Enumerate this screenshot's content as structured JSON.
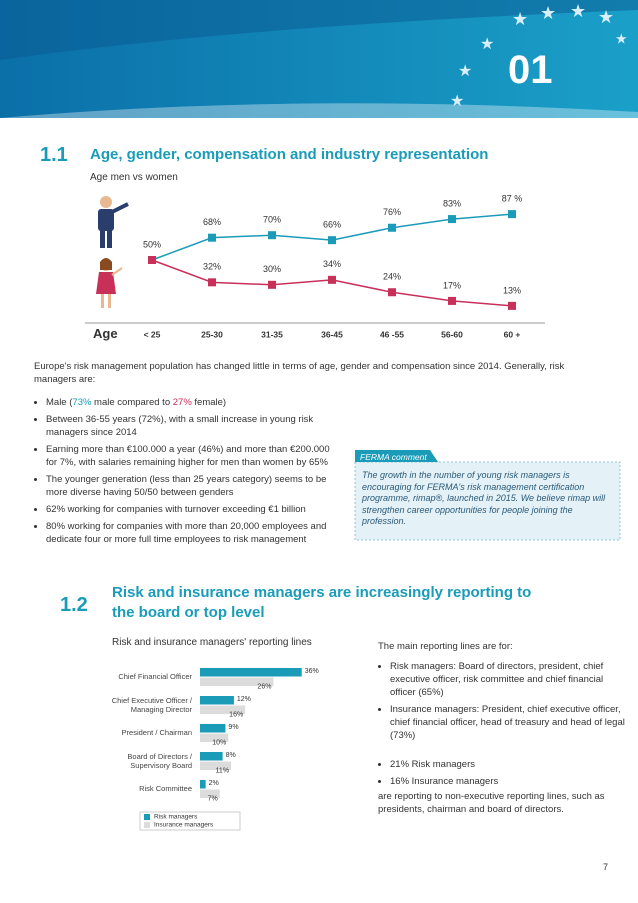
{
  "header": {
    "number": "01"
  },
  "section1": {
    "number": "1.1",
    "title": "Age, gender, compensation and industry representation",
    "intro": "Europe's risk management population has changed little in terms of age, gender and compensation since 2014. Generally, risk managers are:",
    "male_bullet": [
      "Male (",
      "73%",
      " male compared to ",
      "27%",
      " female)"
    ],
    "bullets": [
      "Between 36-55 years (72%), with a small increase in young risk managers since 2014",
      "Earning more than €100.000 a year (46%) and more than €200.000 for 7%, with salaries remaining higher for men than women by 65%",
      "The younger generation (less than 25 years category) seems to be more diverse having 50/50 between genders",
      "62% working for companies with turnover exceeding €1 billion",
      "80% working for companies with more than 20,000 employees and dedicate four or more full time employees to risk management"
    ],
    "comment_label": "FERMA comment",
    "comment": "The growth in the number of young risk managers is encouraging for FERMA's risk management certification programme, rimap®, launched in 2015. We believe rimap will strengthen career opportunities for people joining the profession."
  },
  "section2": {
    "number": "1.2",
    "title": "Risk and insurance managers are increasingly reporting to the board or top level",
    "intro": "The main reporting lines are for:",
    "bullets": [
      "Risk managers: Board of directors, president, chief executive officer, risk committee and chief financial officer (65%)",
      "Insurance managers: President, chief executive officer, chief financial officer, head of treasury and head of legal (73%)"
    ],
    "bullets2": [
      "21% Risk managers",
      "16% Insurance managers"
    ],
    "outro": "are reporting to non-executive reporting lines, such as presidents, chairman and board of directors."
  },
  "chart_data": [
    {
      "type": "line",
      "title": "Age men vs women",
      "x_label": "Age",
      "categories": [
        "< 25",
        "25-30",
        "31-35",
        "36-45",
        "46 -55",
        "56-60",
        "60 +"
      ],
      "ylim": [
        0,
        100
      ],
      "series": [
        {
          "name": "Men",
          "color": "#1a9bb8",
          "values": [
            50,
            68,
            70,
            66,
            76,
            83,
            87
          ],
          "value_labels": [
            "50%",
            "68%",
            "70%",
            "66%",
            "76%",
            "83%",
            "87 %"
          ]
        },
        {
          "name": "Women",
          "color": "#c8305a",
          "values": [
            50,
            32,
            30,
            34,
            24,
            17,
            13
          ],
          "value_labels": [
            null,
            "32%",
            "30%",
            "34%",
            "24%",
            "17%",
            "13%"
          ]
        }
      ]
    },
    {
      "type": "hbar",
      "title": "Risk and insurance managers' reporting lines",
      "categories": [
        "Chief Financial Officer",
        "Chief Executive Officer / Managing Director",
        "President / Chairman",
        "Board of Directors / Supervisory Board",
        "Risk Committee"
      ],
      "xlim": [
        0,
        40
      ],
      "legend": "bottom-left",
      "series": [
        {
          "name": "Risk managers",
          "color": "#1a9bb8",
          "values": [
            36,
            12,
            9,
            8,
            2
          ],
          "value_labels": [
            "36%",
            "12%",
            "9%",
            "8%",
            "2%"
          ]
        },
        {
          "name": "Insurance managers",
          "color": "#dcdcdc",
          "values": [
            26,
            16,
            10,
            11,
            7
          ],
          "value_labels": [
            "26%",
            "16%",
            "10%",
            "11%",
            "7%"
          ]
        }
      ]
    }
  ],
  "page_number": "7"
}
